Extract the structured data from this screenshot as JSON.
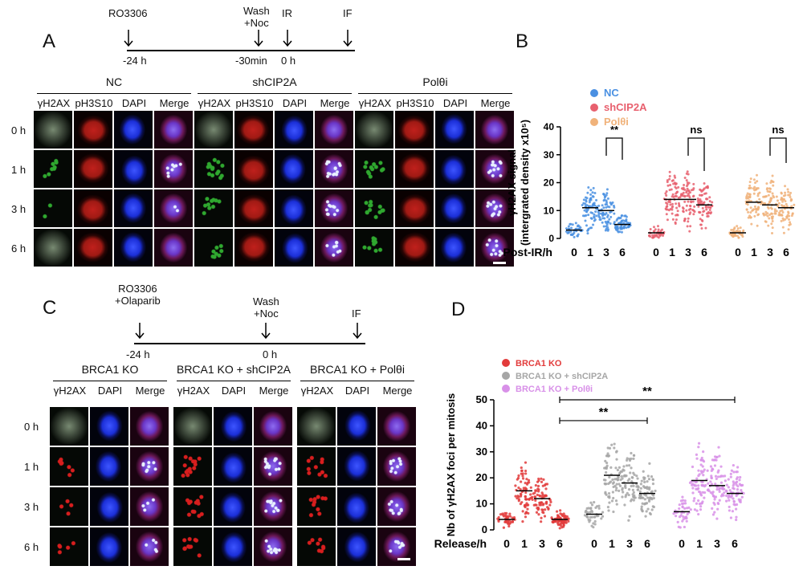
{
  "panelA": {
    "letter": "A",
    "timeline": {
      "events": [
        {
          "label": "RO3306"
        },
        {
          "label": "Wash\n+Noc"
        },
        {
          "label": "IR"
        },
        {
          "label": "IF"
        }
      ],
      "ticks": [
        "-24 h",
        "-30min",
        "0 h"
      ]
    },
    "groups": [
      "NC",
      "shCIP2A",
      "Polθi"
    ],
    "columns": [
      "γH2AX",
      "pH3S10",
      "DAPI",
      "Merge"
    ],
    "rows": [
      "0 h",
      "1 h",
      "3 h",
      "6 h"
    ]
  },
  "panelB": {
    "letter": "B",
    "chart_data": {
      "type": "scatter",
      "ylabel": "γH2AX signal (intergrated density x10^5)",
      "xlabel": "Post-IR/h",
      "ylim": [
        0,
        40
      ],
      "yticks": [
        0,
        10,
        20,
        30,
        40
      ],
      "categories": [
        "0",
        "1",
        "3",
        "6"
      ],
      "series": [
        {
          "name": "NC",
          "color": "#4a90e2",
          "medians": [
            3,
            11,
            10,
            5
          ]
        },
        {
          "name": "shCIP2A",
          "color": "#e8606e",
          "medians": [
            2,
            14,
            14,
            12
          ]
        },
        {
          "name": "Polθi",
          "color": "#f0b27a",
          "medians": [
            2,
            13,
            12,
            11
          ]
        }
      ],
      "annotations": [
        {
          "series": "NC",
          "from": "3",
          "to": "6",
          "label": "**"
        },
        {
          "series": "shCIP2A",
          "from": "3",
          "to": "6",
          "label": "ns"
        },
        {
          "series": "Polθi",
          "from": "3",
          "to": "6",
          "label": "ns"
        }
      ]
    }
  },
  "panelC": {
    "letter": "C",
    "timeline": {
      "events": [
        {
          "label": "RO3306\n+Olaparib"
        },
        {
          "label": "Wash\n+Noc"
        },
        {
          "label": "IF"
        }
      ],
      "ticks": [
        "-24 h",
        "0 h"
      ]
    },
    "groups": [
      "BRCA1 KO",
      "BRCA1 KO + shCIP2A",
      "BRCA1 KO + Polθi"
    ],
    "columns": [
      "γH2AX",
      "DAPI",
      "Merge"
    ],
    "rows": [
      "0 h",
      "1 h",
      "3 h",
      "6 h"
    ]
  },
  "panelD": {
    "letter": "D",
    "chart_data": {
      "type": "scatter",
      "ylabel": "Nb of γH2AX foci per mitosis",
      "xlabel": "Release/h",
      "ylim": [
        0,
        50
      ],
      "yticks": [
        0,
        10,
        20,
        30,
        40,
        50
      ],
      "categories": [
        "0",
        "1",
        "3",
        "6"
      ],
      "series": [
        {
          "name": "BRCA1 KO",
          "color": "#e23b3b",
          "medians": [
            4,
            15,
            12,
            4
          ]
        },
        {
          "name": "BRCA1 KO + shCIP2A",
          "color": "#a6a6a6",
          "medians": [
            6,
            21,
            18,
            14
          ]
        },
        {
          "name": "BRCA1 KO + Polθi",
          "color": "#d890e8",
          "medians": [
            7,
            19,
            17,
            14
          ]
        }
      ],
      "annotations": [
        {
          "from": "BRCA1 KO 6",
          "to": "BRCA1 KO + shCIP2A 6",
          "label": "**"
        },
        {
          "from": "BRCA1 KO 6",
          "to": "BRCA1 KO + Polθi 6",
          "label": "**"
        }
      ]
    }
  },
  "colors": {
    "gH2AX_A": "#2fa82f",
    "pH3": "#c0201c",
    "dapi": "#1b2fd8",
    "gH2AX_C": "#d81e1e"
  }
}
